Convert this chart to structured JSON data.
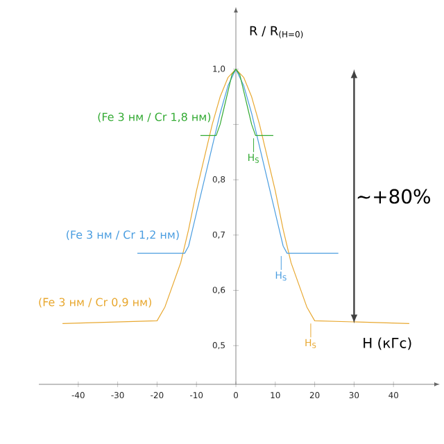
{
  "chart_data": {
    "type": "line",
    "xlabel": "H (кГс)",
    "ylabel": "R / R$_{(H=0)}$",
    "xlim": [
      -50,
      50
    ],
    "ylim": [
      0.43,
      1.1
    ],
    "xticks": [
      -40,
      -30,
      -20,
      -10,
      0,
      10,
      20,
      30,
      40
    ],
    "yticks": [
      {
        "value": 0.5,
        "label": "0,5"
      },
      {
        "value": 0.6,
        "label": "0,6"
      },
      {
        "value": 0.7,
        "label": "0,7"
      },
      {
        "value": 0.8,
        "label": "0,8"
      },
      {
        "value": 0.9,
        "label": null
      },
      {
        "value": 1.0,
        "label": "1,0"
      }
    ],
    "series": [
      {
        "name": "(Fe 3 нм / Cr 0,9 нм)",
        "color": "#e8a830",
        "x": [
          -44,
          -20,
          -18,
          -16,
          -14,
          -12,
          -10,
          -8,
          -6,
          -4,
          -2,
          0,
          2,
          4,
          6,
          8,
          10,
          12,
          14,
          16,
          18,
          20,
          44
        ],
        "values": [
          0.54,
          0.545,
          0.57,
          0.61,
          0.65,
          0.71,
          0.78,
          0.84,
          0.9,
          0.95,
          0.985,
          1.0,
          0.985,
          0.95,
          0.9,
          0.84,
          0.78,
          0.71,
          0.65,
          0.61,
          0.57,
          0.545,
          0.54
        ]
      },
      {
        "name": "(Fe 3 нм / Cr 1,2 нм)",
        "color": "#4a9de0",
        "x": [
          -25,
          -13,
          -12,
          -11,
          -10,
          -8,
          -6,
          -4,
          -2,
          0,
          2,
          4,
          6,
          8,
          10,
          11,
          12,
          13,
          26
        ],
        "values": [
          0.667,
          0.667,
          0.68,
          0.71,
          0.74,
          0.8,
          0.86,
          0.92,
          0.97,
          1.0,
          0.97,
          0.92,
          0.86,
          0.8,
          0.74,
          0.71,
          0.68,
          0.667,
          0.667
        ]
      },
      {
        "name": "(Fe 3 нм / Cr 1,8 нм)",
        "color": "#33aa33",
        "x": [
          -9,
          -5,
          -4,
          -3,
          -2,
          -1,
          0,
          1,
          2,
          3,
          4,
          5,
          9.5
        ],
        "values": [
          0.88,
          0.88,
          0.9,
          0.93,
          0.96,
          0.99,
          1.0,
          0.99,
          0.96,
          0.93,
          0.9,
          0.88,
          0.88
        ]
      }
    ],
    "annotations": [
      {
        "text": "H$_{S}$",
        "x": 19,
        "y": 0.545
      },
      {
        "text": "H$_{S}$",
        "x": 11.5,
        "y": 0.667
      },
      {
        "text": "H$_{S}$",
        "x": 4.5,
        "y": 0.88
      },
      "~+80%"
    ]
  }
}
